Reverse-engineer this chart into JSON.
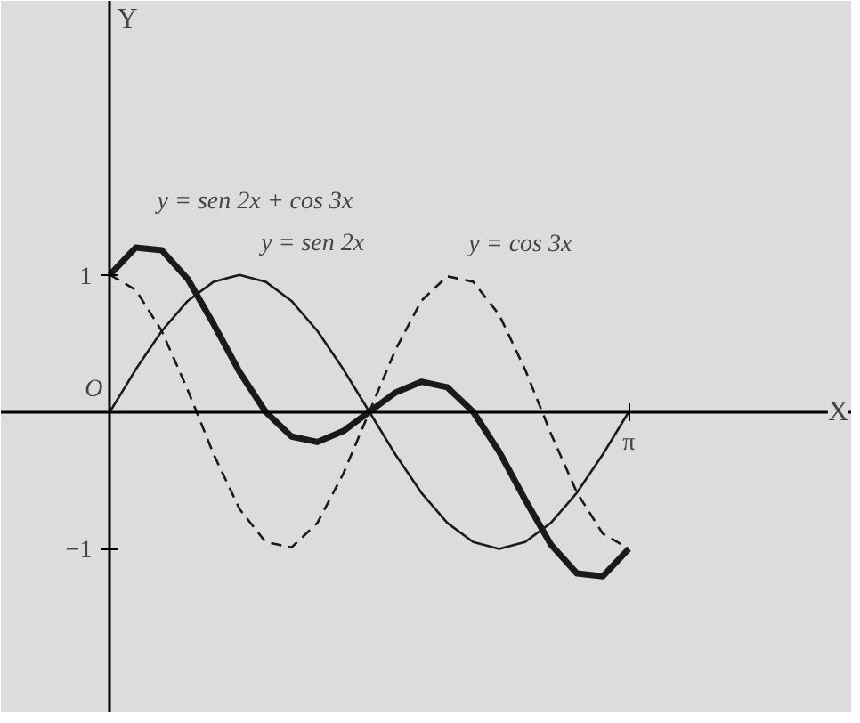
{
  "chart_data": {
    "type": "line",
    "categories": [
      null,
      null,
      null,
      null,
      null,
      null,
      null,
      null,
      null,
      null,
      null,
      null,
      null,
      null,
      null,
      null,
      null,
      null,
      null,
      null,
      null
    ],
    "series": [
      {
        "name": "y = sen 2x + cos 3x",
        "color": "#1a1a1a",
        "line_style": "solid",
        "values": [
          1,
          1.2,
          1.18,
          0.97,
          0.64,
          0.29,
          0,
          -0.18,
          -0.22,
          -0.14,
          0,
          0.14,
          0.22,
          0.18,
          0,
          -0.29,
          -0.64,
          -0.97,
          -1.18,
          -1.2,
          -1
        ]
      },
      {
        "name": "y = sen 2x",
        "color": "#1a1a1a",
        "line_style": "solid",
        "values": [
          0,
          0.31,
          0.59,
          0.81,
          0.95,
          1,
          0.95,
          0.81,
          0.59,
          0.31,
          0,
          -0.31,
          -0.59,
          -0.81,
          -0.95,
          -1,
          -0.95,
          -0.81,
          -0.59,
          -0.31,
          0
        ]
      },
      {
        "name": "y = cos 3x",
        "color": "#1a1a1a",
        "line_style": "dashed",
        "values": [
          1,
          0.89,
          0.59,
          0.16,
          -0.31,
          -0.71,
          -0.95,
          -0.99,
          -0.81,
          -0.45,
          0,
          0.45,
          0.81,
          0.99,
          0.95,
          0.71,
          0.31,
          -0.16,
          -0.59,
          -0.89,
          -1
        ]
      }
    ],
    "ylim": [
      -2.2,
      3.0
    ],
    "yticks": [
      {
        "value": 1,
        "label": "1"
      },
      {
        "value": -1,
        "label": "−1"
      }
    ],
    "annotations": [
      "O",
      "π",
      "X",
      "Y"
    ],
    "grid": false,
    "marker": "none"
  }
}
